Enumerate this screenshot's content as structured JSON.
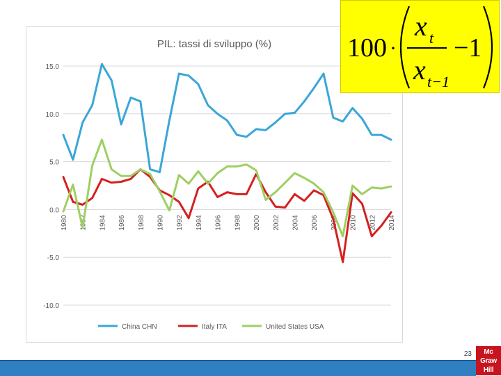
{
  "formula": {
    "coefficient": "100",
    "dot": "·",
    "numerator": "x",
    "numerator_sub": "t",
    "denominator": "x",
    "denominator_sub": "t−1",
    "minus_one": "−1"
  },
  "page_number": "23",
  "logo": {
    "line1": "Mc",
    "line2": "Graw",
    "line3": "Hill"
  },
  "colors": {
    "china": "#3aa6d8",
    "italy": "#d42020",
    "usa": "#9fcf63",
    "grid": "#d9d9d9",
    "axis_text": "#595959",
    "footer": "#2f7fc1",
    "formula_bg": "#ffff00"
  },
  "chart_data": {
    "type": "line",
    "title": "PIL: tassi di sviluppo (%)",
    "xlabel": "",
    "ylabel": "",
    "x": [
      1980,
      1981,
      1982,
      1983,
      1984,
      1985,
      1986,
      1987,
      1988,
      1989,
      1990,
      1991,
      1992,
      1993,
      1994,
      1995,
      1996,
      1997,
      1998,
      1999,
      2000,
      2001,
      2002,
      2003,
      2004,
      2005,
      2006,
      2007,
      2008,
      2009,
      2010,
      2011,
      2012,
      2013,
      2014
    ],
    "x_tick_labels": [
      "1980",
      "1982",
      "1984",
      "1986",
      "1988",
      "1990",
      "1992",
      "1994",
      "1996",
      "1998",
      "2000",
      "2002",
      "2004",
      "2006",
      "2008",
      "2010",
      "2012",
      "2014"
    ],
    "ylim": [
      -10,
      15
    ],
    "y_ticks": [
      15,
      10,
      5,
      0,
      -5,
      -10
    ],
    "y_tick_labels": [
      "15.0",
      "10.0",
      "5.0",
      "0.0",
      "-5.0",
      "-10.0"
    ],
    "grid": "horizontal",
    "legend_position": "bottom",
    "series": [
      {
        "name": "China CHN",
        "values": [
          7.8,
          5.2,
          9.1,
          10.9,
          15.2,
          13.5,
          8.9,
          11.7,
          11.3,
          4.2,
          3.9,
          9.3,
          14.2,
          14.0,
          13.1,
          10.9,
          10.0,
          9.3,
          7.8,
          7.6,
          8.4,
          8.3,
          9.1,
          10.0,
          10.1,
          11.3,
          12.7,
          14.2,
          9.6,
          9.2,
          10.6,
          9.5,
          7.8,
          7.8,
          7.3
        ]
      },
      {
        "name": "Italy ITA",
        "values": [
          3.4,
          0.8,
          0.5,
          1.2,
          3.2,
          2.8,
          2.9,
          3.2,
          4.2,
          3.4,
          2.0,
          1.5,
          0.8,
          -0.9,
          2.2,
          2.9,
          1.3,
          1.8,
          1.6,
          1.6,
          3.7,
          1.8,
          0.3,
          0.2,
          1.6,
          0.9,
          2.0,
          1.5,
          -1.0,
          -5.5,
          1.7,
          0.6,
          -2.8,
          -1.7,
          -0.3
        ]
      },
      {
        "name": "United States USA",
        "values": [
          -0.2,
          2.6,
          -1.9,
          4.6,
          7.3,
          4.2,
          3.5,
          3.5,
          4.2,
          3.7,
          1.9,
          -0.1,
          3.6,
          2.7,
          4.0,
          2.7,
          3.8,
          4.5,
          4.5,
          4.7,
          4.1,
          1.0,
          1.8,
          2.8,
          3.8,
          3.3,
          2.7,
          1.8,
          -0.3,
          -2.8,
          2.5,
          1.6,
          2.3,
          2.2,
          2.4
        ]
      }
    ]
  }
}
